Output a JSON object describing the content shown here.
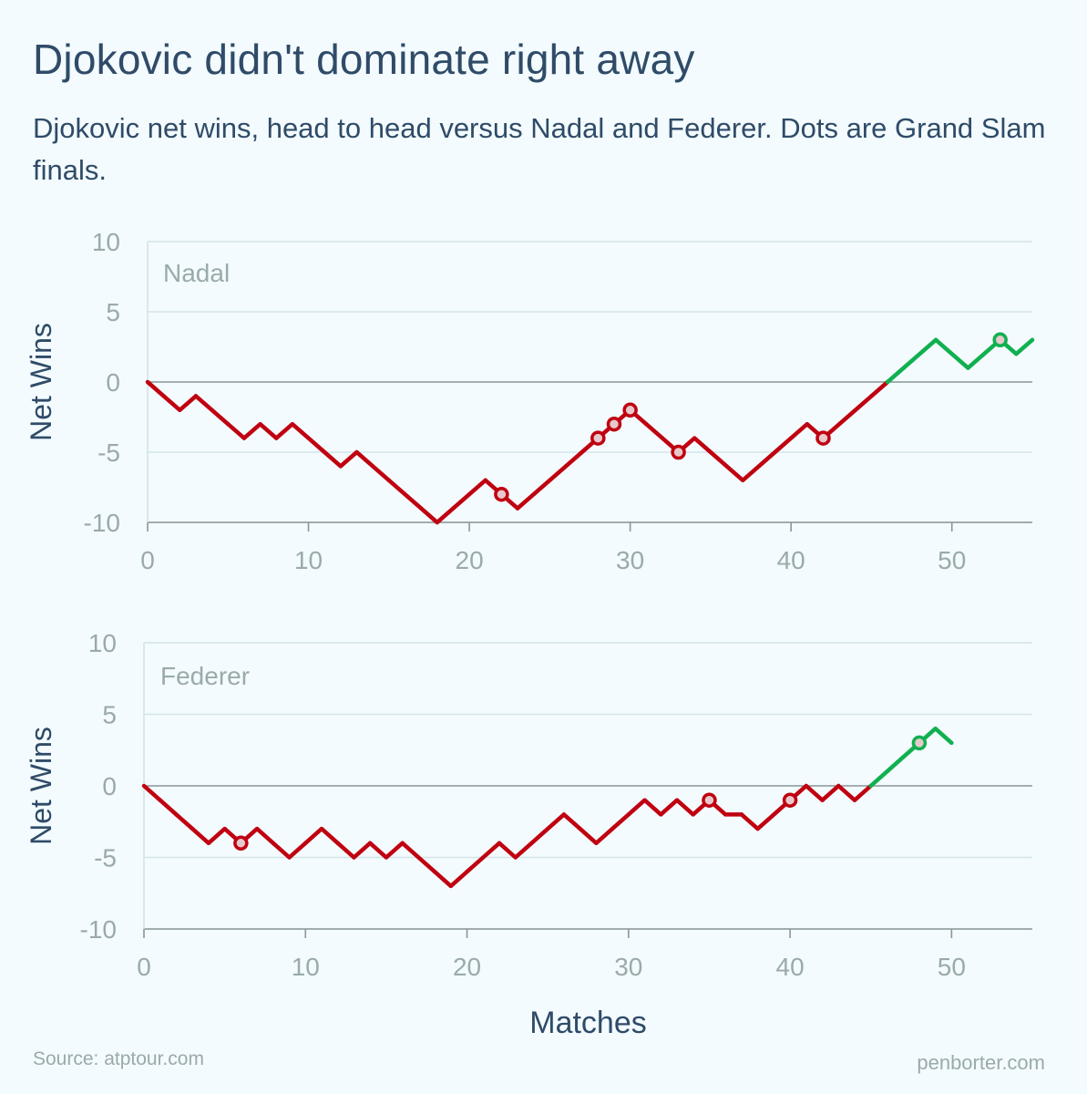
{
  "title": "Djokovic didn't dominate right away",
  "subtitle": "Djokovic net wins, head to head versus Nadal and Federer. Dots are Grand Slam finals.",
  "source": "Source: atptour.com",
  "credit": "penborter.com",
  "colors": {
    "background": "#f3fbfe",
    "text": "#2f4b68",
    "tick": "#9aaaaa",
    "grid": "#d3e4e8",
    "axis": "#8a9698",
    "negative": "#c00010",
    "positive": "#10b050",
    "dot_fill": "#e7c9cb"
  },
  "chart_data": [
    {
      "type": "line",
      "panel_label": "Nadal",
      "xlabel": "",
      "ylabel": "Net Wins",
      "xlim": [
        0,
        55
      ],
      "ylim": [
        -10,
        10
      ],
      "xticks": [
        0,
        10,
        20,
        30,
        40,
        50
      ],
      "yticks": [
        10,
        5,
        0,
        -5,
        -10
      ],
      "grid": true,
      "values": [
        0,
        -1,
        -2,
        -1,
        -2,
        -3,
        -4,
        -3,
        -4,
        -3,
        -4,
        -5,
        -6,
        -5,
        -6,
        -7,
        -8,
        -9,
        -10,
        -9,
        -8,
        -7,
        -8,
        -9,
        -8,
        -7,
        -6,
        -5,
        -4,
        -3,
        -2,
        -3,
        -4,
        -5,
        -4,
        -5,
        -6,
        -7,
        -6,
        -5,
        -4,
        -3,
        -4,
        -3,
        -2,
        -1,
        0,
        1,
        2,
        3,
        2,
        1,
        2,
        3,
        2,
        3
      ],
      "grand_slam_finals": [
        22,
        28,
        29,
        30,
        33,
        42,
        53
      ]
    },
    {
      "type": "line",
      "panel_label": "Federer",
      "xlabel": "Matches",
      "ylabel": "Net Wins",
      "xlim": [
        0,
        55
      ],
      "ylim": [
        -10,
        10
      ],
      "xticks": [
        0,
        10,
        20,
        30,
        40,
        50
      ],
      "yticks": [
        10,
        5,
        0,
        -5,
        -10
      ],
      "grid": true,
      "values": [
        0,
        -1,
        -2,
        -3,
        -4,
        -3,
        -4,
        -3,
        -4,
        -5,
        -4,
        -3,
        -4,
        -5,
        -4,
        -5,
        -4,
        -5,
        -6,
        -7,
        -6,
        -5,
        -4,
        -5,
        -4,
        -3,
        -2,
        -3,
        -4,
        -3,
        -2,
        -1,
        -2,
        -1,
        -2,
        -1,
        -2,
        -2,
        -3,
        -2,
        -1,
        0,
        -1,
        0,
        -1,
        0,
        1,
        2,
        3,
        4,
        3
      ],
      "grand_slam_finals": [
        6,
        35,
        40,
        48
      ]
    }
  ]
}
